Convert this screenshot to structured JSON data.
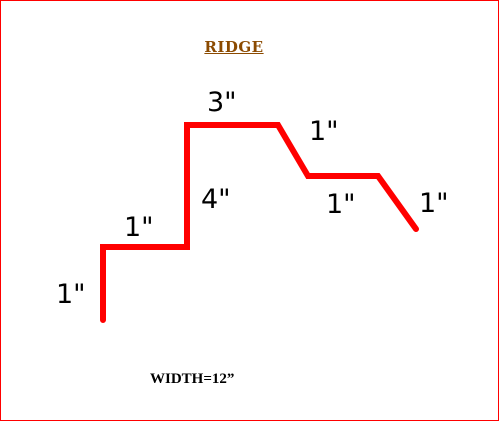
{
  "title": "RIDGE",
  "width_label": "WIDTH=12”",
  "profile_color": "#ff0000",
  "title_color": "#8b4a00",
  "border_color": "#ff0000",
  "dimensions": {
    "left_vertical": "1\"",
    "left_horizontal": "1\"",
    "rise": "4\"",
    "top": "3\"",
    "right_slope": "1\"",
    "right_horizontal": "1\"",
    "end_slope": "1\""
  }
}
